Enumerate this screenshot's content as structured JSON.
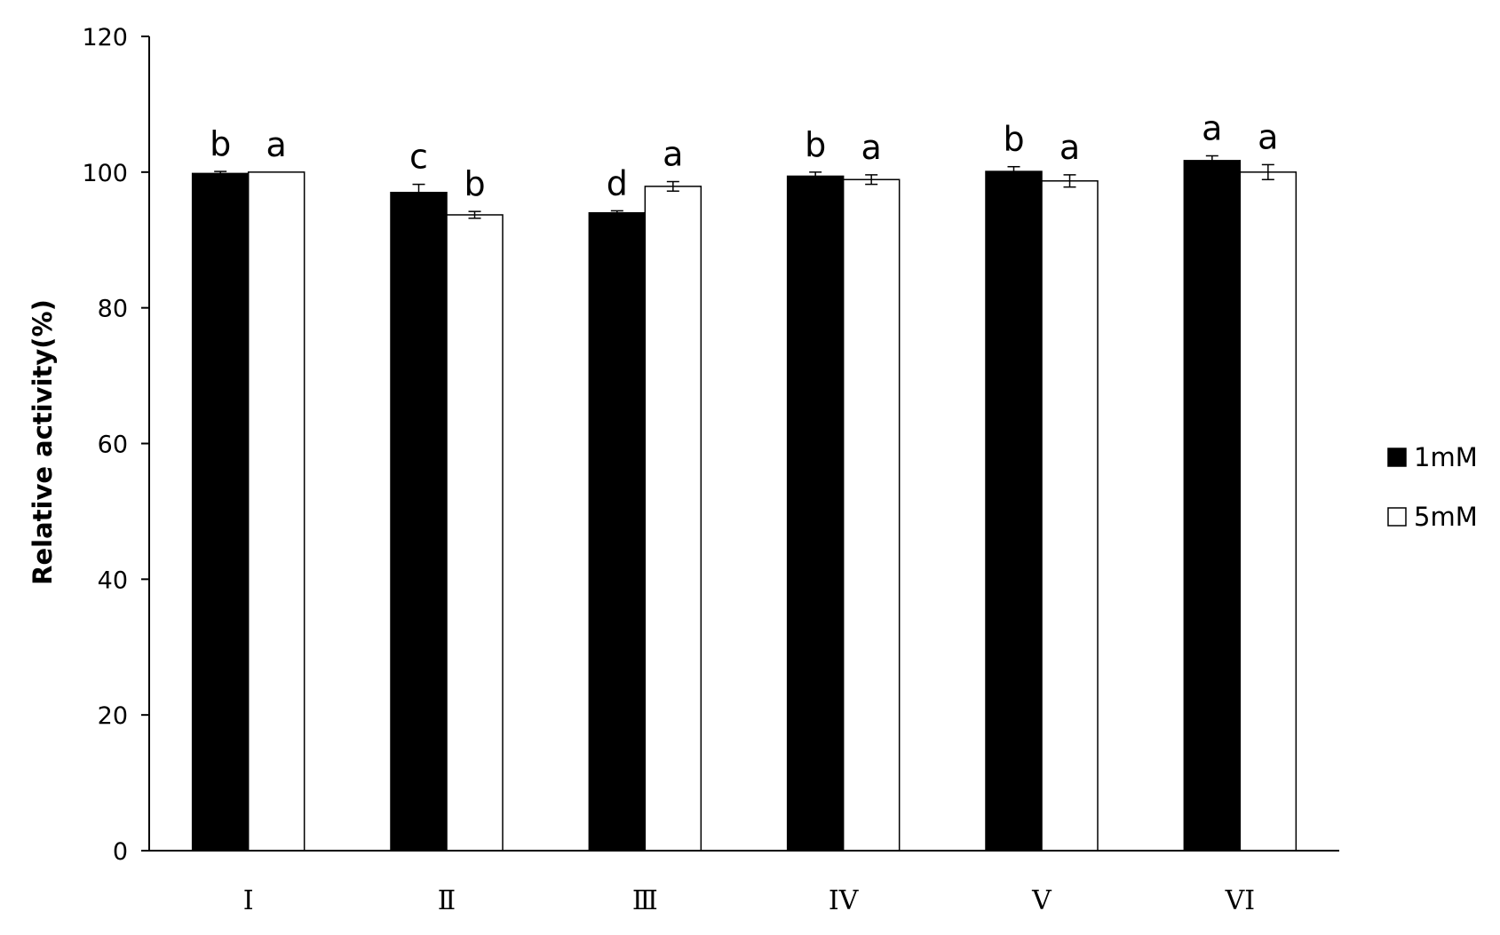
{
  "chart_data": {
    "type": "bar",
    "title": "",
    "xlabel": "",
    "ylabel": "Relative activity(%)",
    "ylim": [
      0,
      120
    ],
    "yticks": [
      0,
      20,
      40,
      60,
      80,
      100,
      120
    ],
    "grid": false,
    "legend_position": "right",
    "categories": [
      "Ⅰ",
      "Ⅱ",
      "Ⅲ",
      "IV",
      "V",
      "VI"
    ],
    "series": [
      {
        "name": "1mM",
        "color": "#000000",
        "values": [
          99.8,
          97.0,
          94.0,
          99.4,
          100.1,
          101.7
        ],
        "errors": [
          0.3,
          1.2,
          0.3,
          0.6,
          0.7,
          0.7
        ],
        "labels": [
          "b",
          "c",
          "d",
          "b",
          "b",
          "a"
        ]
      },
      {
        "name": "5mM",
        "color": "#ffffff",
        "values": [
          100.0,
          93.7,
          97.9,
          98.9,
          98.7,
          100.0
        ],
        "errors": [
          0.0,
          0.5,
          0.7,
          0.7,
          0.9,
          1.1
        ],
        "labels": [
          "a",
          "b",
          "a",
          "a",
          "a",
          "a"
        ]
      }
    ]
  }
}
